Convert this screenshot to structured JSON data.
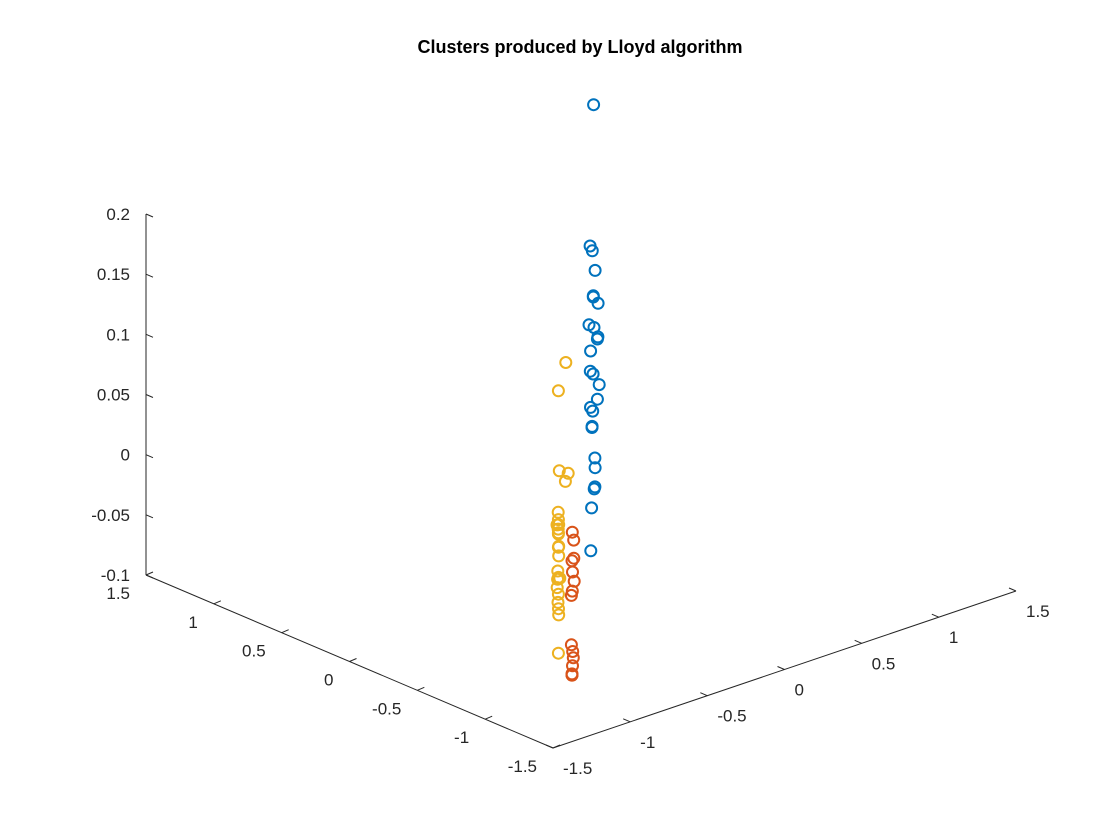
{
  "chart_data": {
    "type": "scatter",
    "title": "Clusters produced by Lloyd algorithm",
    "xlabel": "",
    "ylabel": "",
    "zlabel": "",
    "xlim": [
      -1.5,
      1.5
    ],
    "ylim": [
      -1.5,
      1.5
    ],
    "zlim": [
      -0.1,
      0.2
    ],
    "grid": false,
    "colors": {
      "cluster1": "#0072BD",
      "cluster2": "#D95319",
      "cluster3": "#EDB120"
    },
    "x_ticks": [
      "-1.5",
      "-1",
      "-0.5",
      "0",
      "0.5",
      "1",
      "1.5"
    ],
    "y_ticks": [
      "-1.5",
      "-1",
      "-0.5",
      "0",
      "0.5",
      "1",
      "1.5"
    ],
    "z_ticks": [
      "-0.1",
      "-0.05",
      "0",
      "0.05",
      "0.1",
      "0.15",
      "0.2"
    ],
    "series": [
      {
        "color": "#0072BD",
        "points": [
          [
            1.04,
            1.09,
            0.2
          ],
          [
            0.85,
            0.9,
            0.1
          ],
          [
            0.97,
            1.02,
            0.085
          ],
          [
            1.12,
            1.17,
            0.055
          ],
          [
            0.79,
            0.84,
            0.04
          ],
          [
            1.02,
            1.07,
            0.042
          ],
          [
            1.02,
            1.07,
            0.043
          ],
          [
            0.88,
            0.93,
            0.01
          ],
          [
            1.06,
            1.11,
            0.013
          ],
          [
            1.28,
            1.33,
            0.013
          ],
          [
            0.86,
            0.91,
            -0.005
          ],
          [
            1.24,
            1.29,
            -0.013
          ],
          [
            1.27,
            1.32,
            -0.014
          ],
          [
            1.01,
            1.06,
            -0.021
          ],
          [
            0.87,
            0.92,
            -0.036
          ],
          [
            0.99,
            1.04,
            -0.05
          ],
          [
            0.96,
            1.01,
            -0.06
          ],
          [
            0.95,
            1.0,
            -0.06
          ],
          [
            1.34,
            1.39,
            -0.06
          ],
          [
            1.24,
            1.29,
            -0.063
          ],
          [
            1.11,
            1.16,
            -0.1
          ],
          [
            1.12,
            1.17,
            -0.109
          ],
          [
            0.93,
            0.98,
            -0.125
          ],
          [
            1.07,
            1.12,
            -0.122
          ],
          [
            1.11,
            1.16,
            -0.124
          ],
          [
            0.89,
            0.94,
            -0.157
          ]
        ]
      },
      {
        "color": "#D95319",
        "points": [
          [
            -0.1,
            -0.05,
            -0.051
          ],
          [
            -0.03,
            0.02,
            -0.064
          ],
          [
            -0.12,
            -0.07,
            -0.073
          ],
          [
            -0.02,
            0.03,
            -0.08
          ],
          [
            -0.09,
            -0.04,
            -0.085
          ],
          [
            -0.15,
            -0.1,
            -0.099
          ],
          [
            -0.1,
            -0.05,
            -0.1
          ],
          [
            0.0,
            0.05,
            -0.101
          ],
          [
            -0.15,
            -0.1,
            -0.14
          ],
          [
            -0.08,
            -0.03,
            -0.152
          ],
          [
            -0.09,
            -0.04,
            -0.163
          ],
          [
            -0.05,
            0.0,
            -0.16
          ],
          [
            -0.12,
            -0.07,
            -0.167
          ],
          [
            -0.12,
            -0.07,
            -0.168
          ],
          [
            -0.12,
            -0.07,
            -0.168
          ]
        ]
      },
      {
        "color": "#EDB120",
        "points": [
          [
            -0.85,
            -0.8,
            0.135
          ],
          [
            -0.45,
            -0.4,
            0.122
          ],
          [
            -0.8,
            -0.75,
            0.064
          ],
          [
            -0.47,
            -0.42,
            0.025
          ],
          [
            -0.32,
            -0.27,
            0.018
          ],
          [
            -0.86,
            -0.81,
            0.035
          ],
          [
            -0.85,
            -0.8,
            0.028
          ],
          [
            -0.83,
            -0.78,
            0.022
          ],
          [
            -0.86,
            -0.81,
            0.021
          ],
          [
            -0.85,
            -0.8,
            0.017
          ],
          [
            -0.92,
            -0.87,
            0.03
          ],
          [
            -0.85,
            -0.8,
            0.016
          ],
          [
            -0.85,
            -0.8,
            0.005
          ],
          [
            -0.83,
            -0.78,
            0.004
          ],
          [
            -0.88,
            -0.83,
            -0.012
          ],
          [
            -0.89,
            -0.84,
            -0.018
          ],
          [
            -0.91,
            -0.86,
            -0.023
          ],
          [
            -0.85,
            -0.8,
            -0.02
          ],
          [
            -0.83,
            -0.78,
            -0.004
          ],
          [
            -0.77,
            -0.72,
            -0.028
          ],
          [
            -0.85,
            -0.8,
            -0.034
          ],
          [
            -0.87,
            -0.82,
            -0.039
          ],
          [
            -0.84,
            -0.79,
            -0.047
          ],
          [
            -0.83,
            -0.78,
            -0.053
          ],
          [
            -0.85,
            -0.8,
            -0.083
          ]
        ]
      }
    ]
  }
}
